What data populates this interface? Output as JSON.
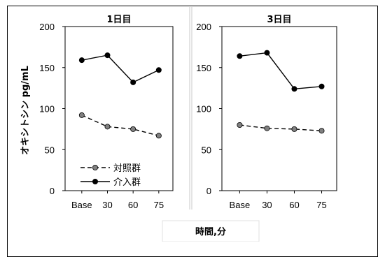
{
  "chart_data": [
    {
      "type": "line",
      "title": "1日目",
      "categories": [
        "Base",
        "30",
        "60",
        "75"
      ],
      "ylim": [
        0,
        200
      ],
      "yticks": [
        0,
        50,
        100,
        150,
        200
      ],
      "series": [
        {
          "name": "対照群",
          "values": [
            92,
            78,
            75,
            67
          ],
          "style": "dashed",
          "marker_color": "#808080"
        },
        {
          "name": "介入群",
          "values": [
            159,
            165,
            132,
            147
          ],
          "style": "solid",
          "marker_color": "#000000"
        }
      ]
    },
    {
      "type": "line",
      "title": "3日目",
      "categories": [
        "Base",
        "30",
        "60",
        "75"
      ],
      "ylim": [
        0,
        200
      ],
      "yticks": [
        0,
        50,
        100,
        150,
        200
      ],
      "series": [
        {
          "name": "対照群",
          "values": [
            80,
            76,
            75,
            73
          ],
          "style": "dashed",
          "marker_color": "#808080"
        },
        {
          "name": "介入群",
          "values": [
            164,
            168,
            124,
            127
          ],
          "style": "solid",
          "marker_color": "#000000"
        }
      ]
    }
  ],
  "ylabel": "オキシトシン pg/mL",
  "xlabel": "時間,分",
  "legend": [
    {
      "label": "対照群",
      "style": "dashed",
      "marker_color": "#808080"
    },
    {
      "label": "介入群",
      "style": "solid",
      "marker_color": "#000000"
    }
  ],
  "legend_position": "bottom-left of left panel",
  "grid": false
}
